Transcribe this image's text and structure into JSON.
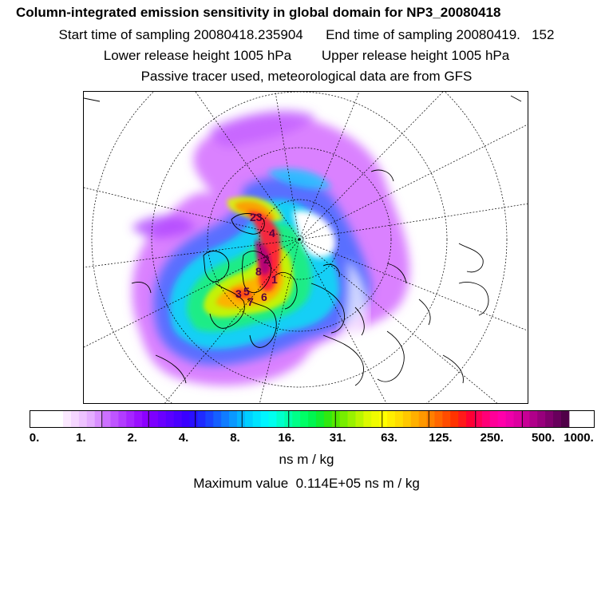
{
  "header": {
    "title": "Column-integrated emission sensitivity in global domain for NP3_20080418",
    "sampling": "Start time of sampling 20080418.235904      End time of sampling 20080419.   152",
    "release": "Lower release height 1005 hPa        Upper release height 1005 hPa",
    "tracer": "Passive tracer used, meteorological data are from GFS"
  },
  "map": {
    "projection": "north-polar-stereographic",
    "release_marker_labels": [
      "23",
      "4",
      "2",
      "8",
      "1",
      "5",
      "6",
      "7",
      "3"
    ]
  },
  "colorbar": {
    "tick_labels": [
      "0.",
      "1.",
      "2.",
      "4.",
      "8.",
      "16.",
      "31.",
      "63.",
      "125.",
      "250.",
      "500.",
      "1000."
    ],
    "colors": [
      "#ffffff",
      "#fbe9ff",
      "#f5d6ff",
      "#eec2ff",
      "#e5adff",
      "#d98fff",
      "#cc70ff",
      "#bf55ff",
      "#b23cff",
      "#a626ff",
      "#9a10ff",
      "#8c00ff",
      "#7d00ff",
      "#6a00ff",
      "#5a00ff",
      "#4a00ff",
      "#3a00ff",
      "#2a10ff",
      "#1f2aff",
      "#1a44ff",
      "#1560ff",
      "#107cff",
      "#0a98ff",
      "#05b4ff",
      "#00d0ff",
      "#00e4ff",
      "#00f5ff",
      "#00ffee",
      "#00ffcc",
      "#00ffaa",
      "#00ff88",
      "#00ff66",
      "#00f550",
      "#10ee30",
      "#30e810",
      "#55e800",
      "#77ee00",
      "#99f200",
      "#bbf600",
      "#ddfa00",
      "#f0fc00",
      "#ffff00",
      "#ffee00",
      "#ffdd00",
      "#ffc800",
      "#ffb000",
      "#ff9800",
      "#ff7f00",
      "#ff6600",
      "#ff4c00",
      "#ff3300",
      "#ff1a1a",
      "#ff0033",
      "#ff0055",
      "#ff0077",
      "#ff0099",
      "#ff00aa",
      "#ee00aa",
      "#dd00a0",
      "#c80096",
      "#b0008a",
      "#98007c",
      "#80006c",
      "#68005c",
      "#500048"
    ],
    "units": "ns m / kg",
    "max_value_text": "Maximum value  0.114E+05 ns m / kg"
  }
}
